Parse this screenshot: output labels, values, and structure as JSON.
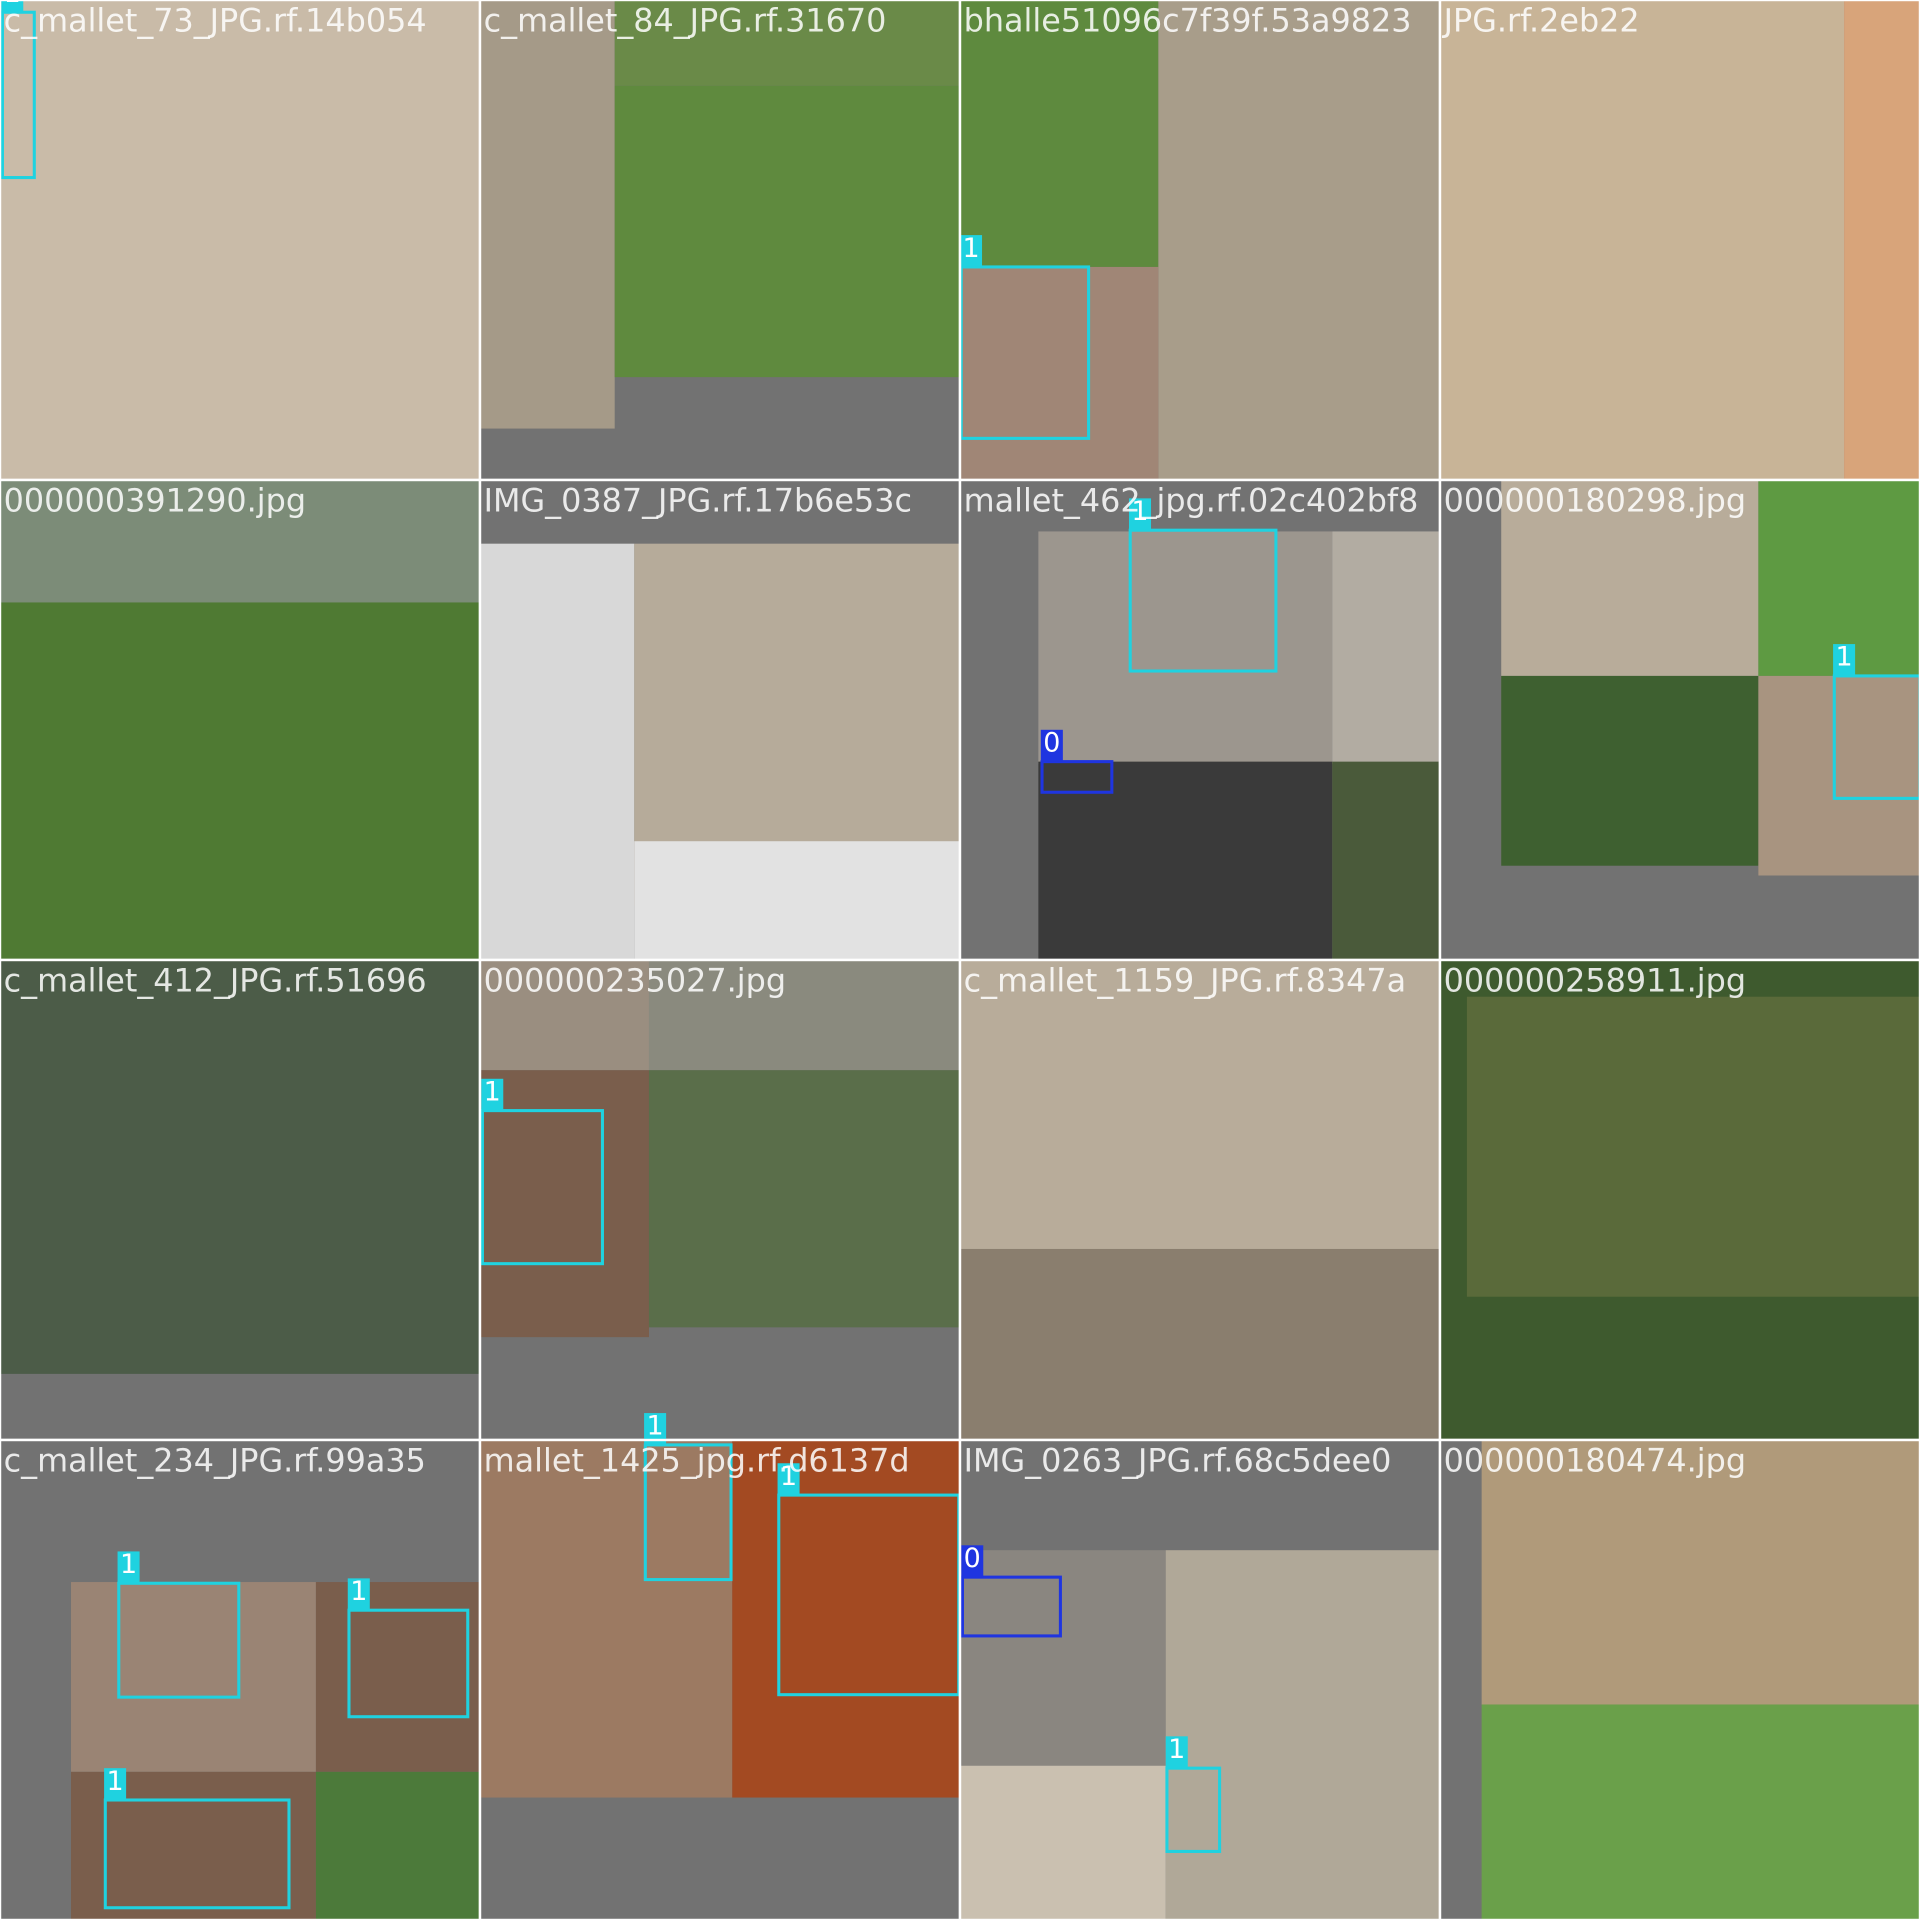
{
  "cells": [
    {
      "label": "c_mallet_73_JPG.rf.14b054",
      "boxes": [
        {
          "cls": "1"
        }
      ]
    },
    {
      "label": "c_mallet_84_JPG.rf.31670",
      "boxes": []
    },
    {
      "label": "bhalle51096c7f39f.53a9823",
      "boxes": [
        {
          "cls": "1"
        }
      ]
    },
    {
      "label": "JPG.rf.2eb22",
      "boxes": []
    },
    {
      "label": "000000391290.jpg",
      "boxes": []
    },
    {
      "label": "IMG_0387_JPG.rf.17b6e53c",
      "boxes": [],
      "note": null
    },
    {
      "label": "mallet_462_jpg.rf.02c402bf8",
      "boxes": [
        {
          "cls": "1"
        },
        {
          "cls": "0"
        }
      ]
    },
    {
      "label": "000000180298.jpg",
      "boxes": [
        {
          "cls": "1"
        }
      ]
    },
    {
      "label": "c_mallet_412_JPG.rf.51696",
      "boxes": []
    },
    {
      "label": "000000235027.jpg",
      "boxes": [
        {
          "cls": "1"
        }
      ]
    },
    {
      "label": "c_mallet_1159_JPG.rf.8347a",
      "boxes": []
    },
    {
      "label": "000000258911.jpg",
      "boxes": []
    },
    {
      "label": "c_mallet_234_JPG.rf.99a35",
      "boxes": [
        {
          "cls": "1"
        },
        {
          "cls": "1"
        },
        {
          "cls": "1"
        }
      ]
    },
    {
      "label": "mallet_1425_jpg.rf.d6137d",
      "boxes": [
        {
          "cls": "1"
        },
        {
          "cls": "1"
        }
      ]
    },
    {
      "label": "IMG_0263_JPG.rf.68c5dee0",
      "boxes": [
        {
          "cls": "0"
        },
        {
          "cls": "1"
        }
      ]
    },
    {
      "label": "000000180474.jpg",
      "boxes": []
    }
  ]
}
